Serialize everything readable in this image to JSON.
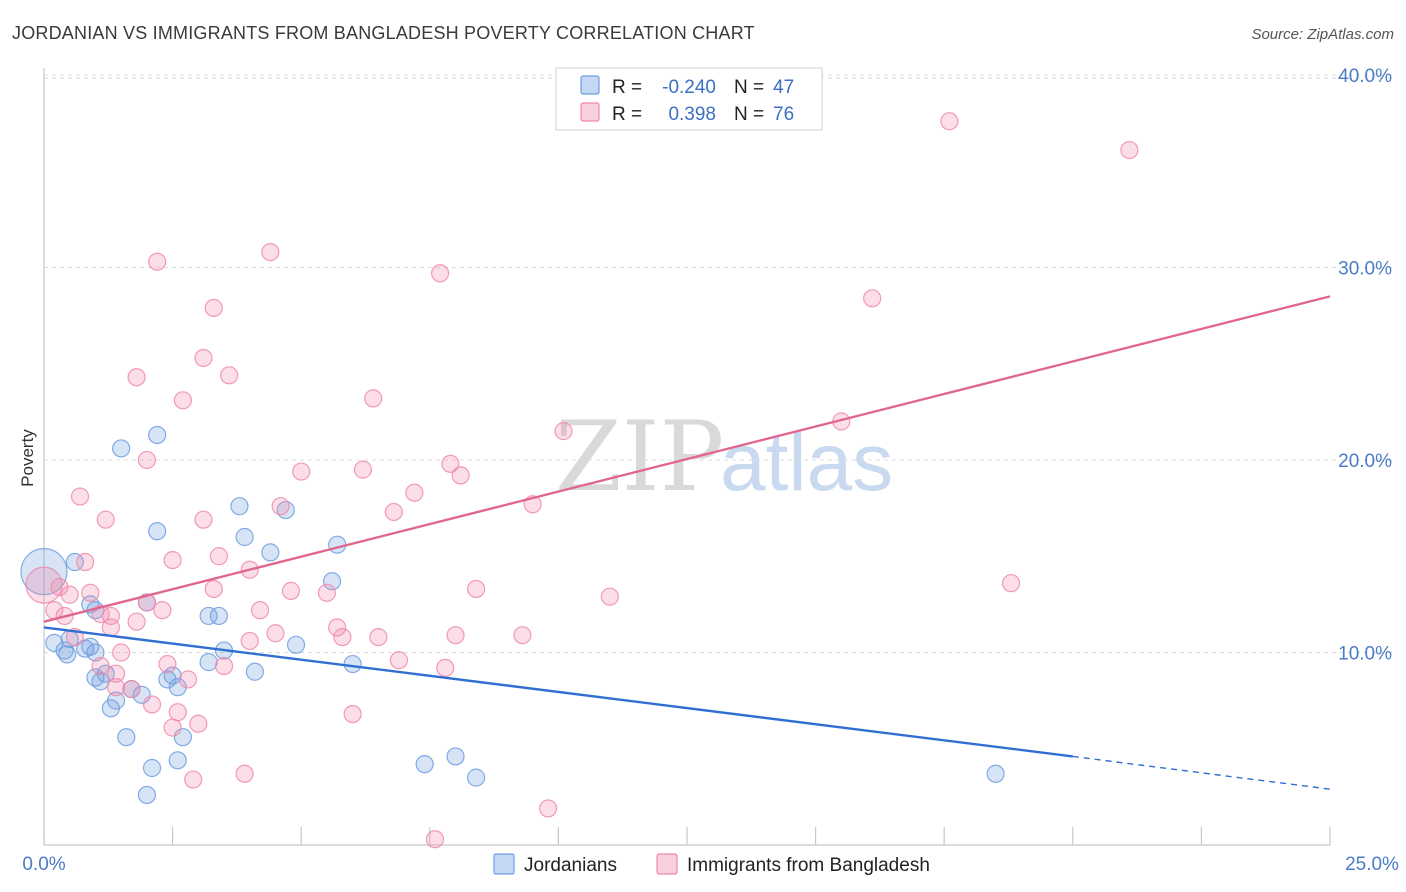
{
  "header": {
    "title": "JORDANIAN VS IMMIGRANTS FROM BANGLADESH POVERTY CORRELATION CHART",
    "source": "Source: ZipAtlas.com"
  },
  "watermark": {
    "zip": "ZIP",
    "atlas": "atlas"
  },
  "legend": {
    "r_label": "R =",
    "n_label": "N =",
    "rows": [
      {
        "name": "Jordanians",
        "r": "-0.240",
        "n": "47",
        "color": "#6f9ee0"
      },
      {
        "name": "Immigrants from Bangladesh",
        "r": "0.398",
        "n": "76",
        "color": "#f08aaa"
      }
    ]
  },
  "chart_data": {
    "type": "scatter",
    "title": "JORDANIAN VS IMMIGRANTS FROM BANGLADESH POVERTY CORRELATION CHART",
    "xlabel": "",
    "ylabel": "Poverty",
    "xlim": [
      0,
      25
    ],
    "ylim": [
      0,
      40
    ],
    "x_tick_labels": {
      "min": "0.0%",
      "max": "25.0%"
    },
    "y_ticks": [
      {
        "value": 10,
        "label": "10.0%"
      },
      {
        "value": 20,
        "label": "20.0%"
      },
      {
        "value": 30,
        "label": "30.0%"
      },
      {
        "value": 40,
        "label": "40.0%"
      }
    ],
    "series": [
      {
        "name": "Jordanians",
        "color": "#6f9ee0",
        "trend": {
          "x0": 0,
          "y0": 11.3,
          "x1": 20,
          "y1": 4.6,
          "dash_to_x": 25,
          "dash_to_y": 2.9
        },
        "points": [
          [
            0,
            14.2,
            3
          ],
          [
            0.2,
            10.5,
            1
          ],
          [
            0.4,
            10.1,
            1
          ],
          [
            0.5,
            10.7,
            1
          ],
          [
            0.45,
            9.9,
            1
          ],
          [
            0.8,
            10.2,
            1
          ],
          [
            0.9,
            10.3,
            1
          ],
          [
            0.6,
            14.7,
            1
          ],
          [
            0.9,
            12.5,
            1
          ],
          [
            1.0,
            12.2,
            1
          ],
          [
            1.0,
            10.0,
            1
          ],
          [
            1.0,
            8.7,
            1
          ],
          [
            1.1,
            8.5,
            1
          ],
          [
            1.2,
            8.9,
            1
          ],
          [
            1.3,
            7.1,
            1
          ],
          [
            1.4,
            7.5,
            1
          ],
          [
            1.6,
            5.6,
            1
          ],
          [
            1.7,
            8.1,
            1
          ],
          [
            1.9,
            7.8,
            1
          ],
          [
            2.0,
            12.6,
            1
          ],
          [
            2.1,
            4.0,
            1
          ],
          [
            2.0,
            2.6,
            1
          ],
          [
            1.5,
            20.6,
            1
          ],
          [
            2.2,
            16.3,
            1
          ],
          [
            2.4,
            8.6,
            1
          ],
          [
            2.5,
            8.8,
            1
          ],
          [
            2.6,
            8.2,
            1
          ],
          [
            2.6,
            4.4,
            1
          ],
          [
            2.7,
            5.6,
            1
          ],
          [
            3.2,
            11.9,
            1
          ],
          [
            3.2,
            9.5,
            1
          ],
          [
            3.4,
            11.9,
            1
          ],
          [
            3.5,
            10.1,
            1
          ],
          [
            3.8,
            17.6,
            1
          ],
          [
            3.9,
            16.0,
            1
          ],
          [
            4.1,
            9.0,
            1
          ],
          [
            4.4,
            15.2,
            1
          ],
          [
            4.7,
            17.4,
            1
          ],
          [
            4.9,
            10.4,
            1
          ],
          [
            5.7,
            15.6,
            1
          ],
          [
            5.6,
            13.7,
            1
          ],
          [
            6.0,
            9.4,
            1
          ],
          [
            7.4,
            4.2,
            1
          ],
          [
            8.0,
            4.6,
            1
          ],
          [
            8.4,
            3.5,
            1
          ],
          [
            18.5,
            3.7,
            1
          ],
          [
            2.2,
            21.3,
            1
          ]
        ]
      },
      {
        "name": "Immigrants from Bangladesh",
        "color": "#f08aaa",
        "trend": {
          "x0": 0,
          "y0": 11.6,
          "x1": 25,
          "y1": 28.5
        },
        "points": [
          [
            0,
            13.5,
            2
          ],
          [
            0.2,
            12.2,
            1
          ],
          [
            0.3,
            13.4,
            1
          ],
          [
            0.4,
            11.9,
            1
          ],
          [
            0.5,
            13.0,
            1
          ],
          [
            0.6,
            10.8,
            1
          ],
          [
            0.7,
            18.1,
            1
          ],
          [
            0.8,
            14.7,
            1
          ],
          [
            0.9,
            13.1,
            1
          ],
          [
            1.1,
            12.0,
            1
          ],
          [
            1.2,
            16.9,
            1
          ],
          [
            1.3,
            11.3,
            1
          ],
          [
            1.1,
            9.3,
            1
          ],
          [
            1.4,
            8.9,
            1
          ],
          [
            1.4,
            8.2,
            1
          ],
          [
            1.5,
            10.0,
            1
          ],
          [
            1.7,
            8.1,
            1
          ],
          [
            1.8,
            11.6,
            1
          ],
          [
            1.8,
            24.3,
            1
          ],
          [
            2.0,
            12.6,
            1
          ],
          [
            2.0,
            20.0,
            1
          ],
          [
            2.1,
            7.3,
            1
          ],
          [
            2.2,
            30.3,
            1
          ],
          [
            2.3,
            12.2,
            1
          ],
          [
            2.4,
            9.4,
            1
          ],
          [
            2.5,
            6.1,
            1
          ],
          [
            2.5,
            14.8,
            1
          ],
          [
            2.6,
            6.9,
            1
          ],
          [
            2.7,
            23.1,
            1
          ],
          [
            2.8,
            8.6,
            1
          ],
          [
            2.9,
            3.4,
            1
          ],
          [
            3.0,
            6.3,
            1
          ],
          [
            3.1,
            25.3,
            1
          ],
          [
            3.1,
            16.9,
            1
          ],
          [
            3.3,
            27.9,
            1
          ],
          [
            3.3,
            13.3,
            1
          ],
          [
            3.4,
            15.0,
            1
          ],
          [
            3.5,
            9.3,
            1
          ],
          [
            3.6,
            24.4,
            1
          ],
          [
            3.9,
            3.7,
            1
          ],
          [
            4.0,
            14.3,
            1
          ],
          [
            4.0,
            10.6,
            1
          ],
          [
            4.2,
            12.2,
            1
          ],
          [
            4.4,
            30.8,
            1
          ],
          [
            4.5,
            11.0,
            1
          ],
          [
            4.6,
            17.6,
            1
          ],
          [
            4.8,
            13.2,
            1
          ],
          [
            5.0,
            19.4,
            1
          ],
          [
            5.5,
            13.1,
            1
          ],
          [
            5.7,
            11.3,
            1
          ],
          [
            5.8,
            10.8,
            1
          ],
          [
            6.0,
            6.8,
            1
          ],
          [
            6.2,
            19.5,
            1
          ],
          [
            6.4,
            23.2,
            1
          ],
          [
            6.5,
            10.8,
            1
          ],
          [
            6.8,
            17.3,
            1
          ],
          [
            6.9,
            9.6,
            1
          ],
          [
            7.2,
            18.3,
            1
          ],
          [
            7.6,
            0.3,
            1
          ],
          [
            7.7,
            29.7,
            1
          ],
          [
            7.8,
            9.2,
            1
          ],
          [
            7.9,
            19.8,
            1
          ],
          [
            8.0,
            10.9,
            1
          ],
          [
            8.1,
            19.2,
            1
          ],
          [
            8.4,
            13.3,
            1
          ],
          [
            9.3,
            10.9,
            1
          ],
          [
            9.5,
            17.7,
            1
          ],
          [
            9.8,
            1.9,
            1
          ],
          [
            10.1,
            21.5,
            1
          ],
          [
            11.0,
            12.9,
            1
          ],
          [
            15.5,
            22.0,
            1
          ],
          [
            16.1,
            28.4,
            1
          ],
          [
            17.6,
            37.6,
            1
          ],
          [
            18.8,
            13.6,
            1
          ],
          [
            21.1,
            36.1,
            1
          ],
          [
            1.3,
            11.9,
            1
          ]
        ]
      }
    ]
  }
}
